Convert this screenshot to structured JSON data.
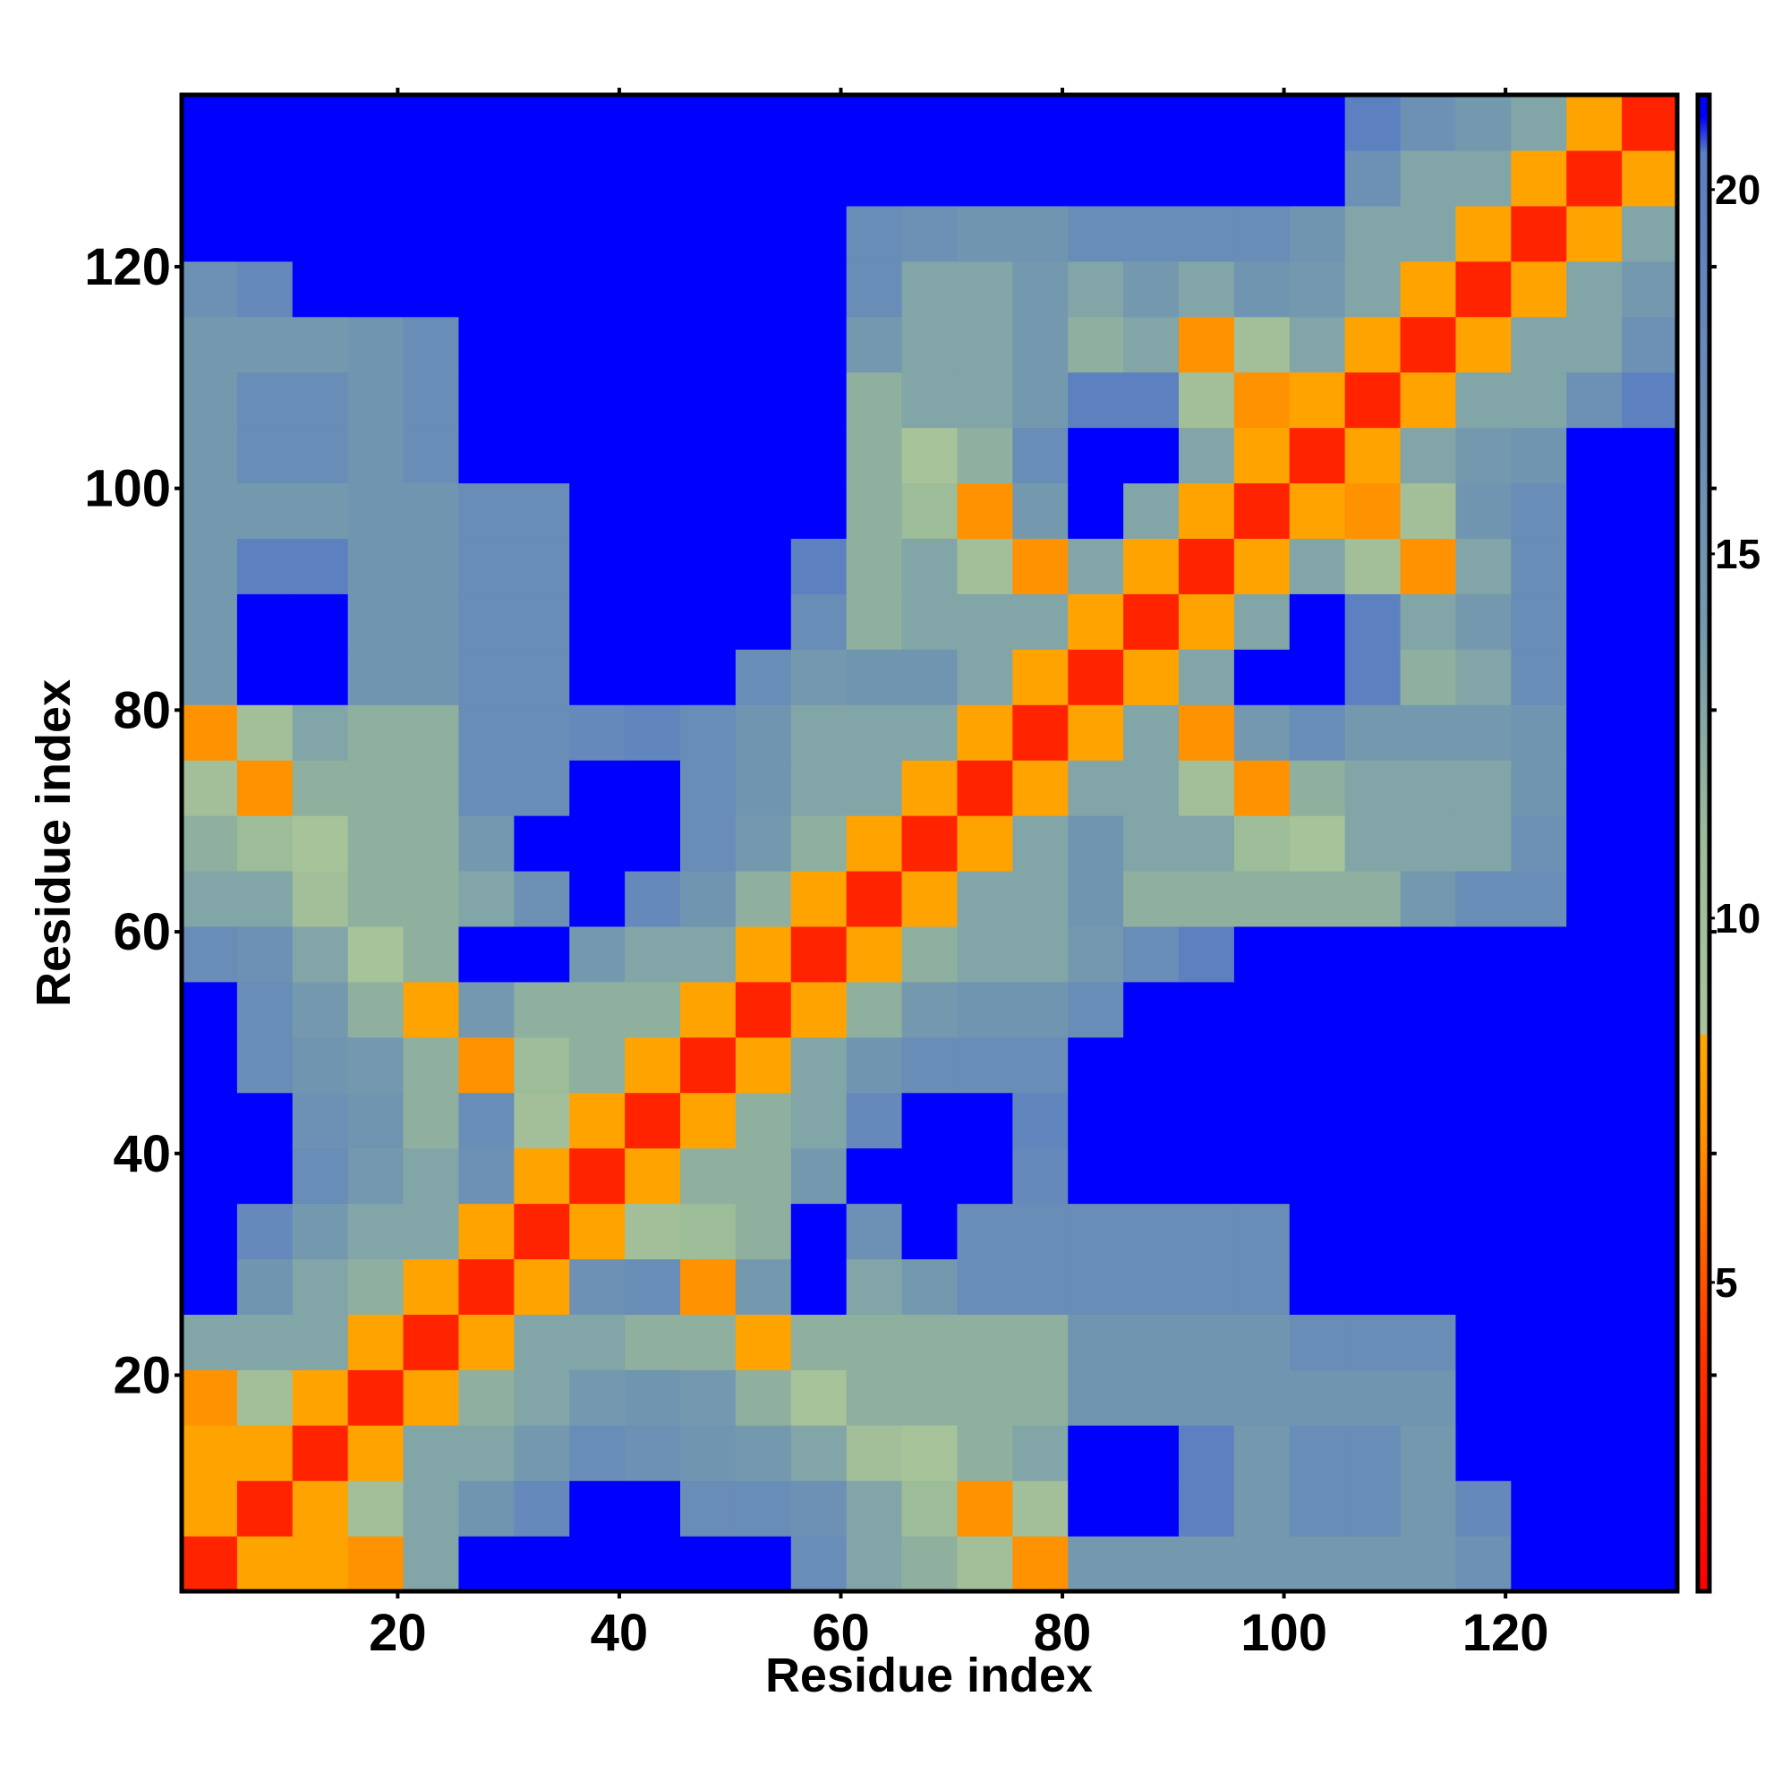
{
  "chart_data": {
    "type": "heatmap",
    "xlabel": "Residue index",
    "ylabel": "Residue index",
    "x": [
      3,
      8,
      13,
      18,
      23,
      28,
      33,
      38,
      43,
      48,
      53,
      58,
      63,
      68,
      73,
      78,
      83,
      88,
      93,
      98,
      103,
      108,
      113,
      118,
      123,
      128,
      133
    ],
    "y": [
      3,
      8,
      13,
      18,
      23,
      28,
      33,
      38,
      43,
      48,
      53,
      58,
      63,
      68,
      73,
      78,
      83,
      88,
      93,
      98,
      103,
      108,
      113,
      118,
      123,
      128,
      133
    ],
    "xlim": [
      0.5,
      135.5
    ],
    "ylim": [
      0.5,
      135.5
    ],
    "xticks": [
      20,
      40,
      60,
      80,
      100,
      120
    ],
    "yticks": [
      20,
      40,
      60,
      80,
      100,
      120
    ],
    "zlim": [
      0.76,
      21.3
    ],
    "zticks": [
      5,
      10,
      15,
      20
    ],
    "colorscale": [
      [
        0.76,
        "#ff0000"
      ],
      [
        4,
        "#ff3300"
      ],
      [
        7,
        "#ff9200"
      ],
      [
        8.4,
        "#ffaa00"
      ],
      [
        8.41,
        "#aac59b"
      ],
      [
        11,
        "#9dbc98"
      ],
      [
        14,
        "#7499ae"
      ],
      [
        20.5,
        "#5b7fc2"
      ],
      [
        21.0,
        "#0000ff"
      ],
      [
        21.3,
        "#0000ff"
      ]
    ],
    "values": [
      [
        3,
        8,
        8,
        7,
        13,
        22,
        22,
        22,
        22,
        22,
        22,
        17,
        13,
        12,
        10,
        7,
        14,
        14,
        14,
        14,
        14,
        14,
        14,
        16,
        22,
        22,
        22
      ],
      [
        8,
        3,
        8,
        10,
        13,
        15,
        18,
        22,
        22,
        17,
        17,
        16,
        13,
        11,
        7,
        10,
        22,
        22,
        20,
        14,
        17,
        17,
        14,
        18,
        22,
        22,
        22
      ],
      [
        8,
        8,
        3,
        8,
        13,
        13,
        14,
        17,
        16,
        15,
        14,
        13,
        10,
        9,
        12,
        13,
        22,
        22,
        20,
        14,
        17,
        17,
        14,
        22,
        22,
        22,
        22
      ],
      [
        7,
        10,
        8,
        3,
        8,
        12,
        13,
        14,
        15,
        14,
        12,
        9,
        12,
        12,
        12,
        12,
        15,
        15,
        15,
        15,
        15,
        15,
        15,
        22,
        22,
        22,
        22
      ],
      [
        13,
        13,
        13,
        8,
        3,
        8,
        13,
        13,
        12,
        12,
        8,
        12,
        12,
        12,
        12,
        12,
        15,
        15,
        15,
        15,
        17,
        17,
        17,
        22,
        22,
        22,
        22
      ],
      [
        22,
        15,
        13,
        12,
        8,
        3,
        8,
        16,
        17,
        7,
        14,
        22,
        13,
        14,
        17,
        17,
        17,
        17,
        17,
        17,
        22,
        22,
        22,
        22,
        22,
        22,
        22
      ],
      [
        22,
        18,
        14,
        13,
        13,
        8,
        3,
        8,
        10,
        11,
        12,
        22,
        16,
        22,
        17,
        17,
        17,
        17,
        17,
        17,
        22,
        22,
        22,
        22,
        22,
        22,
        22
      ],
      [
        22,
        22,
        17,
        14,
        13,
        16,
        8,
        3,
        8,
        12,
        12,
        14,
        22,
        22,
        22,
        18,
        22,
        22,
        22,
        22,
        22,
        22,
        22,
        22,
        22,
        22,
        22
      ],
      [
        22,
        22,
        16,
        15,
        12,
        17,
        10,
        8,
        3,
        8,
        12,
        13,
        18,
        22,
        22,
        19,
        22,
        22,
        22,
        22,
        22,
        22,
        22,
        22,
        22,
        22,
        22
      ],
      [
        22,
        17,
        15,
        14,
        12,
        7,
        11,
        12,
        8,
        3,
        8,
        13,
        15,
        17,
        17,
        17,
        22,
        22,
        22,
        22,
        22,
        22,
        22,
        22,
        22,
        22,
        22
      ],
      [
        22,
        17,
        14,
        12,
        8,
        14,
        12,
        12,
        12,
        8,
        3,
        8,
        12,
        14,
        15,
        15,
        17,
        22,
        22,
        22,
        22,
        22,
        22,
        22,
        22,
        22,
        22
      ],
      [
        17,
        16,
        13,
        9,
        12,
        22,
        22,
        14,
        13,
        13,
        8,
        3,
        8,
        12,
        13,
        13,
        14,
        17,
        20,
        22,
        22,
        22,
        22,
        22,
        22,
        22,
        22
      ],
      [
        13,
        13,
        10,
        12,
        12,
        13,
        16,
        22,
        18,
        15,
        12,
        8,
        3,
        8,
        13,
        13,
        15,
        12,
        12,
        12,
        12,
        12,
        14,
        17,
        17,
        22,
        22
      ],
      [
        12,
        11,
        9,
        12,
        12,
        14,
        22,
        22,
        22,
        17,
        14,
        12,
        8,
        3,
        8,
        13,
        15,
        13,
        13,
        11,
        9,
        13,
        13,
        13,
        16,
        22,
        22
      ],
      [
        10,
        7,
        12,
        12,
        12,
        17,
        17,
        22,
        22,
        17,
        15,
        13,
        13,
        8,
        3,
        8,
        13,
        13,
        10,
        7,
        12,
        13,
        13,
        13,
        15,
        22,
        22
      ],
      [
        7,
        10,
        13,
        12,
        12,
        17,
        17,
        18,
        19,
        17,
        15,
        13,
        13,
        13,
        8,
        3,
        8,
        13,
        7,
        14,
        17,
        14,
        14,
        14,
        15,
        22,
        22
      ],
      [
        14,
        22,
        22,
        15,
        15,
        17,
        17,
        22,
        22,
        22,
        17,
        14,
        15,
        15,
        13,
        8,
        3,
        8,
        13,
        22,
        22,
        20,
        12,
        13,
        17,
        22,
        22
      ],
      [
        14,
        22,
        22,
        15,
        15,
        17,
        17,
        22,
        22,
        22,
        22,
        17,
        12,
        13,
        13,
        13,
        8,
        3,
        8,
        13,
        22,
        20,
        13,
        14,
        17,
        22,
        22
      ],
      [
        14,
        20,
        20,
        15,
        15,
        17,
        17,
        22,
        22,
        22,
        22,
        20,
        12,
        13,
        10,
        7,
        13,
        8,
        3,
        8,
        13,
        10,
        7,
        13,
        17,
        22,
        22
      ],
      [
        14,
        14,
        14,
        15,
        15,
        17,
        17,
        22,
        22,
        22,
        22,
        22,
        12,
        11,
        7,
        14,
        22,
        13,
        8,
        3,
        8,
        7,
        10,
        15,
        17,
        22,
        22
      ],
      [
        14,
        17,
        17,
        15,
        17,
        22,
        22,
        22,
        22,
        22,
        22,
        22,
        12,
        9,
        12,
        17,
        22,
        22,
        13,
        8,
        3,
        8,
        13,
        14,
        15,
        22,
        22
      ],
      [
        14,
        17,
        17,
        15,
        17,
        22,
        22,
        22,
        22,
        22,
        22,
        22,
        12,
        13,
        13,
        14,
        20,
        20,
        10,
        7,
        8,
        3,
        8,
        13,
        13,
        16,
        20
      ],
      [
        14,
        14,
        14,
        15,
        17,
        22,
        22,
        22,
        22,
        22,
        22,
        22,
        14,
        13,
        13,
        14,
        12,
        13,
        7,
        10,
        13,
        8,
        3,
        8,
        13,
        13,
        16
      ],
      [
        16,
        18,
        22,
        22,
        22,
        22,
        22,
        22,
        22,
        22,
        22,
        22,
        17,
        13,
        13,
        14,
        13,
        14,
        13,
        15,
        14,
        13,
        8,
        3,
        8,
        13,
        14
      ],
      [
        22,
        22,
        22,
        22,
        22,
        22,
        22,
        22,
        22,
        22,
        22,
        22,
        17,
        16,
        15,
        15,
        17,
        17,
        17,
        17,
        15,
        13,
        13,
        8,
        3,
        8,
        13
      ],
      [
        22,
        22,
        22,
        22,
        22,
        22,
        22,
        22,
        22,
        22,
        22,
        22,
        22,
        22,
        22,
        22,
        22,
        22,
        22,
        22,
        22,
        16,
        13,
        13,
        8,
        3,
        8
      ],
      [
        22,
        22,
        22,
        22,
        22,
        22,
        22,
        22,
        22,
        22,
        22,
        22,
        22,
        22,
        22,
        22,
        22,
        22,
        22,
        22,
        22,
        20,
        16,
        14,
        13,
        8,
        3
      ]
    ]
  }
}
